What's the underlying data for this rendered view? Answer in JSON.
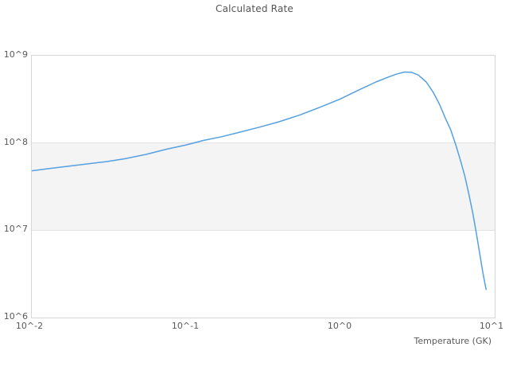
{
  "chart_data": {
    "type": "line",
    "title": "Calculated Rate",
    "xlabel": "Temperature (GK)",
    "ylabel": "",
    "x_scale": "log",
    "y_scale": "log",
    "xlim": [
      0.01,
      10
    ],
    "ylim": [
      1000000,
      1000000000
    ],
    "x_ticks": [
      "10^-2",
      "10^-1",
      "10^0",
      "10^1"
    ],
    "y_ticks": [
      "10^9",
      "10^8",
      "10^7",
      "10^6"
    ],
    "grid": "decade band between 10^7 and 10^8 shaded",
    "band": {
      "y_from": 10000000,
      "y_to": 100000000,
      "color": "#f4f4f4"
    },
    "legend": "none",
    "series": [
      {
        "name": "calculated-rate",
        "color": "#55a0e0",
        "x": [
          0.01,
          0.013,
          0.017,
          0.022,
          0.03,
          0.04,
          0.055,
          0.075,
          0.1,
          0.13,
          0.17,
          0.22,
          0.3,
          0.4,
          0.55,
          0.75,
          1.0,
          1.3,
          1.7,
          2.0,
          2.3,
          2.6,
          2.9,
          3.2,
          3.6,
          4.0,
          4.4,
          4.8,
          5.2,
          5.6,
          6.0,
          6.4,
          6.8,
          7.2,
          7.6,
          8.0,
          8.4,
          8.8
        ],
        "y": [
          48000000.0,
          51000000.0,
          54000000.0,
          57000000.0,
          61000000.0,
          66000000.0,
          74000000.0,
          85000000.0,
          95000000.0,
          107000000.0,
          118000000.0,
          132000000.0,
          152000000.0,
          175000000.0,
          210000000.0,
          260000000.0,
          320000000.0,
          400000000.0,
          500000000.0,
          560000000.0,
          615000000.0,
          650000000.0,
          645000000.0,
          600000000.0,
          500000000.0,
          380000000.0,
          275000000.0,
          190000000.0,
          140000000.0,
          95000000.0,
          63000000.0,
          42000000.0,
          26000000.0,
          16000000.0,
          9300000.0,
          5400000.0,
          3200000.0,
          2100000.0
        ]
      }
    ]
  },
  "colors": {
    "line": "#55a0e0",
    "band_fill": "#f4f4f4",
    "frame_border": "#d6d6d6",
    "tick_text": "#595959",
    "title_text": "#545454",
    "background": "#ffffff"
  }
}
